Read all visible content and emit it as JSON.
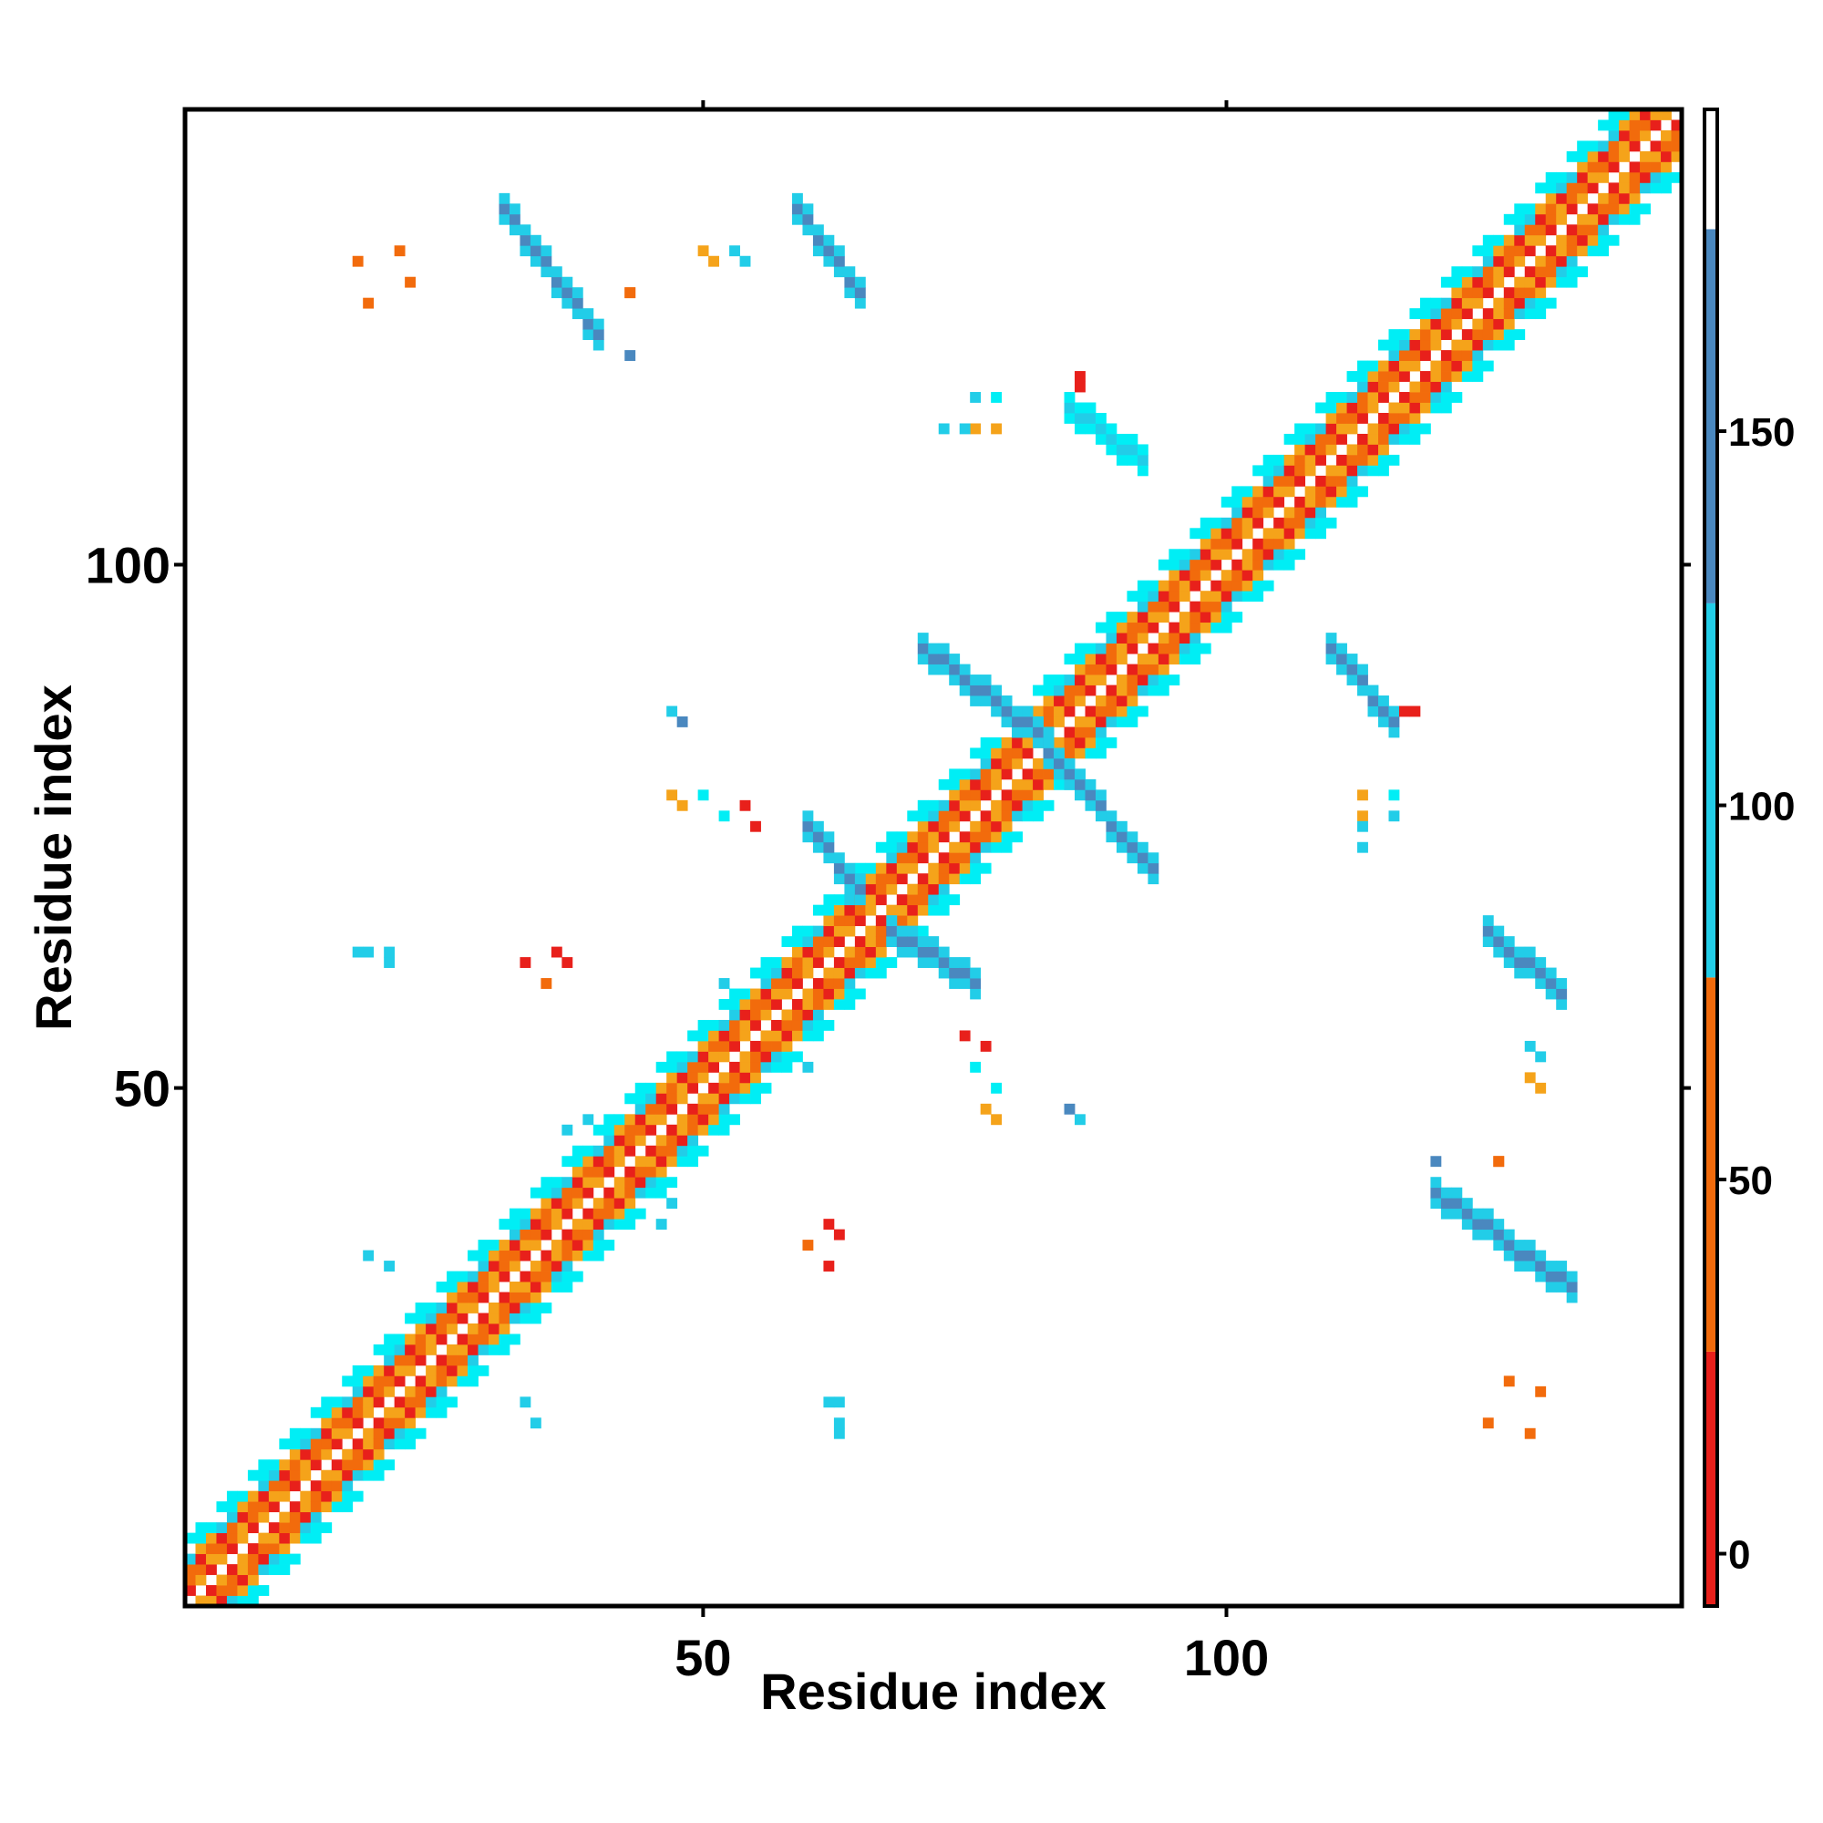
{
  "chart_data": {
    "type": "heatmap",
    "title": "",
    "xlabel": "Residue index",
    "ylabel": "Residue index",
    "xlim": [
      1,
      143
    ],
    "ylim": [
      1,
      143
    ],
    "x_ticks": [
      50,
      100
    ],
    "y_ticks": [
      50,
      100
    ],
    "grid": false,
    "colorbar": {
      "position": "right",
      "ticks": [
        0,
        50,
        100,
        150
      ],
      "range": [
        -7,
        193
      ],
      "colors": [
        {
          "from": -7,
          "to": 27,
          "color": "#e8201b"
        },
        {
          "from": 27,
          "to": 77,
          "color": "#f26b0c"
        },
        {
          "from": 77,
          "to": 127,
          "color": "#22cde8"
        },
        {
          "from": 127,
          "to": 177,
          "color": "#4a88bf"
        },
        {
          "from": 177,
          "to": 193,
          "color": "#ffffff"
        }
      ]
    },
    "colors": {
      "red": "#e8201b",
      "orange": "#f26b0c",
      "amber": "#f5a31a",
      "cyan": "#22cde8",
      "bright_cyan": "#00eef5",
      "steel_blue": "#4a88bf"
    },
    "diagonal_band": {
      "start": 1,
      "end": 143,
      "width": 6
    },
    "regions": [
      {
        "x": [
          31,
          40
        ],
        "y": [
          122,
          134
        ],
        "direction": "anti",
        "value": 150
      },
      {
        "x": [
          59,
          65
        ],
        "y": [
          126,
          134
        ],
        "direction": "anti",
        "value": 150
      },
      {
        "x": [
          85,
          92
        ],
        "y": [
          110,
          115
        ],
        "direction": "anti",
        "value": 120
      },
      {
        "x": [
          71,
          83
        ],
        "y": [
          83,
          92
        ],
        "direction": "anti",
        "value": 150
      },
      {
        "x": [
          83,
          93
        ],
        "y": [
          71,
          82
        ],
        "direction": "anti",
        "value": 150
      },
      {
        "x": [
          60,
          65
        ],
        "y": [
          69,
          75
        ],
        "direction": "anti",
        "value": 130
      },
      {
        "x": [
          68,
          76
        ],
        "y": [
          60,
          65
        ],
        "direction": "anti",
        "value": 130
      },
      {
        "x": [
          110,
          116
        ],
        "y": [
          85,
          92
        ],
        "direction": "anti",
        "value": 150
      },
      {
        "x": [
          125,
          132
        ],
        "y": [
          59,
          65
        ],
        "direction": "anti",
        "value": 150
      },
      {
        "x": [
          120,
          133
        ],
        "y": [
          31,
          40
        ],
        "direction": "anti",
        "value": 150
      }
    ],
    "isolated_points": [
      {
        "x": 17,
        "y": 129,
        "value": 50
      },
      {
        "x": 21,
        "y": 130,
        "value": 50
      },
      {
        "x": 50,
        "y": 130,
        "value": 70
      },
      {
        "x": 53,
        "y": 130,
        "value": 110
      },
      {
        "x": 43,
        "y": 126,
        "value": 50
      },
      {
        "x": 76,
        "y": 116,
        "value": 110
      },
      {
        "x": 76,
        "y": 113,
        "value": 60
      },
      {
        "x": 73,
        "y": 113,
        "value": 110
      },
      {
        "x": 86,
        "y": 118,
        "value": 10
      },
      {
        "x": 47,
        "y": 86,
        "value": 110
      },
      {
        "x": 47,
        "y": 78,
        "value": 60
      },
      {
        "x": 50,
        "y": 78,
        "value": 100
      },
      {
        "x": 54,
        "y": 77,
        "value": 10
      },
      {
        "x": 117,
        "y": 86,
        "value": 10
      },
      {
        "x": 113,
        "y": 78,
        "value": 60
      },
      {
        "x": 116,
        "y": 78,
        "value": 100
      },
      {
        "x": 113,
        "y": 75,
        "value": 110
      },
      {
        "x": 17,
        "y": 63,
        "value": 110
      },
      {
        "x": 20,
        "y": 63,
        "value": 110
      },
      {
        "x": 33,
        "y": 62,
        "value": 10
      },
      {
        "x": 36,
        "y": 63,
        "value": 10
      },
      {
        "x": 75,
        "y": 55,
        "value": 10
      },
      {
        "x": 76,
        "y": 52,
        "value": 100
      },
      {
        "x": 77,
        "y": 48,
        "value": 70
      },
      {
        "x": 85,
        "y": 48,
        "value": 130
      },
      {
        "x": 129,
        "y": 54,
        "value": 110
      },
      {
        "x": 129,
        "y": 51,
        "value": 70
      },
      {
        "x": 120,
        "y": 43,
        "value": 130
      },
      {
        "x": 126,
        "y": 43,
        "value": 50
      },
      {
        "x": 62,
        "y": 37,
        "value": 10
      },
      {
        "x": 60,
        "y": 35,
        "value": 50
      },
      {
        "x": 127,
        "y": 22,
        "value": 50
      },
      {
        "x": 125,
        "y": 18,
        "value": 50
      },
      {
        "x": 62,
        "y": 20,
        "value": 110
      },
      {
        "x": 63,
        "y": 18,
        "value": 110
      },
      {
        "x": 33,
        "y": 20,
        "value": 110
      },
      {
        "x": 34,
        "y": 18,
        "value": 110
      },
      {
        "x": 60,
        "y": 52,
        "value": 110
      },
      {
        "x": 39,
        "y": 47,
        "value": 110
      },
      {
        "x": 46,
        "y": 37,
        "value": 110
      }
    ]
  }
}
